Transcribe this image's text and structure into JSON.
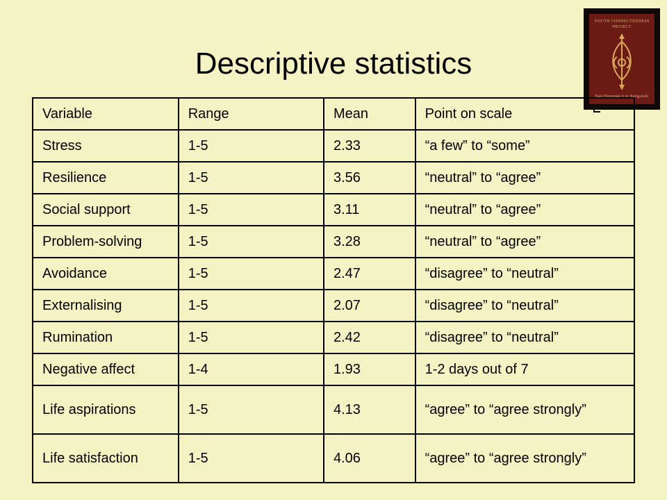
{
  "slide": {
    "title": "Descriptive statistics"
  },
  "logo": {
    "line1": "YOUTH CONNECTEDNESS",
    "line2": "PROJECT",
    "line3": "Ngā Hononga ō te Rangatahi"
  },
  "table": {
    "headers": [
      "Variable",
      "Range",
      "Mean",
      "Point on scale"
    ],
    "rows": [
      [
        "Stress",
        "1-5",
        "2.33",
        "“a few” to “some”"
      ],
      [
        "Resilience",
        "1-5",
        "3.56",
        "“neutral” to “agree”"
      ],
      [
        "Social support",
        "1-5",
        "3.11",
        "“neutral” to “agree”"
      ],
      [
        "Problem-solving",
        "1-5",
        "3.28",
        "“neutral” to “agree”"
      ],
      [
        "Avoidance",
        "1-5",
        "2.47",
        "“disagree” to “neutral”"
      ],
      [
        "Externalising",
        "1-5",
        "2.07",
        "“disagree” to “neutral”"
      ],
      [
        "Rumination",
        "1-5",
        "2.42",
        "“disagree” to “neutral”"
      ],
      [
        "Negative affect",
        "1-4",
        "1.93",
        "1-2 days out of 7"
      ],
      [
        "Life aspirations",
        "1-5",
        "4.13",
        "“agree” to “agree strongly”"
      ],
      [
        "Life satisfaction",
        "1-5",
        "4.06",
        "“agree” to “agree strongly”"
      ]
    ]
  }
}
